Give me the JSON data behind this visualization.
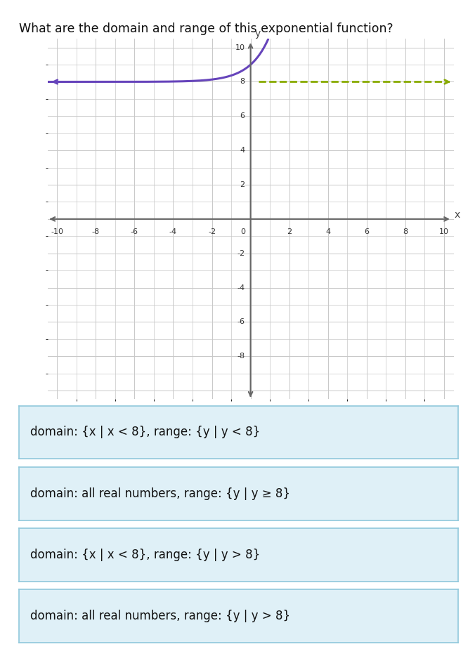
{
  "title": "What are the domain and range of this exponential function?",
  "title_fontsize": 12.5,
  "graph_xlim": [
    -10.5,
    10.5
  ],
  "graph_ylim": [
    -10.5,
    10.5
  ],
  "grid_color": "#c8c8c8",
  "axis_color": "#666666",
  "curve_color": "#6644bb",
  "asymptote_value": 8,
  "dashed_color": "#88aa00",
  "options": [
    "domain: {x | x < 8}, range: {y | y < 8}",
    "domain: all real numbers, range: {y | y ≥ 8}",
    "domain: {x | x < 8}, range: {y | y > 8}",
    "domain: all real numbers, range: {y | y > 8}"
  ],
  "option_fontsize": 12,
  "option_box_facecolor": "#dff0f7",
  "option_box_edgecolor": "#90c8dc",
  "background_color": "#ffffff",
  "fig_width": 6.76,
  "fig_height": 9.24,
  "dpi": 100
}
